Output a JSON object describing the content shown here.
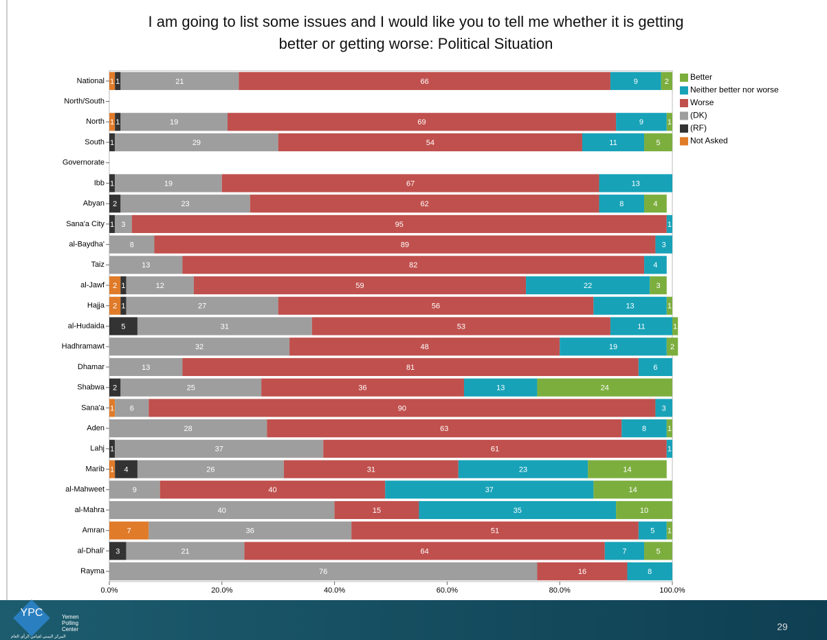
{
  "chart_data": {
    "type": "stacked_barh",
    "title": "I am going to list some issues and I would like you to tell me whether it is getting better or getting worse: Political Situation",
    "categories": [
      "National",
      "North/South",
      "North",
      "South",
      "Governorate",
      "Ibb",
      "Abyan",
      "Sana'a City",
      "al-Baydha'",
      "Taiz",
      "al-Jawf",
      "Hajja",
      "al-Hudaida",
      "Hadhramawt",
      "Dhamar",
      "Shabwa",
      "Sana'a",
      "Aden",
      "Lahj",
      "Marib",
      "al-Mahweet",
      "al-Mahra",
      "Amran",
      "al-Dhali'",
      "Rayma"
    ],
    "series": [
      {
        "name": "Not Asked",
        "color": "#e07b2a",
        "values": [
          1,
          null,
          1,
          0,
          null,
          0,
          0,
          0,
          0,
          0,
          2,
          2,
          0,
          0,
          0,
          0,
          1,
          0,
          0,
          1,
          0,
          0,
          7,
          0,
          0
        ]
      },
      {
        "name": "(RF)",
        "color": "#333333",
        "values": [
          1,
          null,
          1,
          1,
          null,
          1,
          2,
          1,
          0,
          0,
          1,
          1,
          5,
          0,
          0,
          2,
          0,
          0,
          1,
          4,
          0,
          0,
          0,
          3,
          0
        ]
      },
      {
        "name": "(DK)",
        "color": "#9e9e9e",
        "values": [
          21,
          null,
          19,
          29,
          null,
          19,
          23,
          3,
          8,
          13,
          12,
          27,
          31,
          32,
          13,
          25,
          6,
          28,
          37,
          26,
          9,
          40,
          36,
          21,
          76
        ]
      },
      {
        "name": "Worse",
        "color": "#c0504d",
        "values": [
          66,
          null,
          69,
          54,
          null,
          67,
          62,
          95,
          89,
          82,
          59,
          56,
          53,
          48,
          81,
          36,
          90,
          63,
          61,
          31,
          40,
          15,
          51,
          64,
          16
        ]
      },
      {
        "name": "Neither better nor worse",
        "color": "#17a2b8",
        "values": [
          9,
          null,
          9,
          11,
          null,
          13,
          8,
          1,
          3,
          4,
          22,
          13,
          11,
          19,
          6,
          13,
          3,
          8,
          1,
          23,
          37,
          35,
          5,
          7,
          8
        ]
      },
      {
        "name": "Better",
        "color": "#7cae3e",
        "values": [
          2,
          null,
          1,
          5,
          null,
          0,
          4,
          0,
          0,
          0,
          3,
          1,
          1,
          2,
          0,
          24,
          0,
          1,
          0,
          14,
          14,
          10,
          1,
          5,
          0
        ]
      }
    ],
    "legend_order": [
      "Better",
      "Neither better nor worse",
      "Worse",
      "(DK)",
      "(RF)",
      "Not Asked"
    ],
    "xlim": [
      0,
      100
    ],
    "xticks": [
      {
        "value": 0,
        "label": "0.0%"
      },
      {
        "value": 20,
        "label": "20.0%"
      },
      {
        "value": 40,
        "label": "40.0%"
      },
      {
        "value": 60,
        "label": "60.0%"
      },
      {
        "value": 80,
        "label": "80.0%"
      },
      {
        "value": 100,
        "label": "100.0%"
      }
    ],
    "legend": "upper right"
  },
  "footer": {
    "logo": "YPC",
    "org": [
      "Yemen",
      "Polling",
      "Center"
    ],
    "org_arabic": "المركز اليمني لقياس الرأي العام",
    "page": "29"
  }
}
